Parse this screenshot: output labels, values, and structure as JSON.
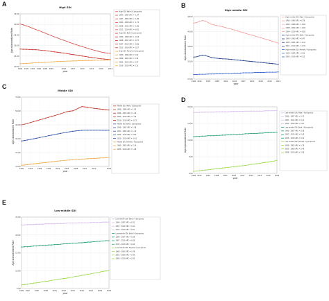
{
  "chart_data": [
    {
      "type": "line",
      "letter": "A",
      "title": "High SDI",
      "xlabel": "year",
      "ylabel": "Age-standardized Rate",
      "x": [
        1990,
        1991,
        1992,
        1993,
        1994,
        1995,
        1996,
        1997,
        1998,
        1999,
        2000,
        2001,
        2002,
        2003,
        2004,
        2005,
        2006,
        2007,
        2008,
        2009,
        2010,
        2011,
        2012,
        2013,
        2014,
        2015,
        2016,
        2017,
        2018,
        2019
      ],
      "xticks": [
        "1990",
        "1992",
        "1994",
        "1996",
        "1998",
        "2000",
        "2004",
        "2007",
        "2010",
        "2013",
        "2016",
        "2019"
      ],
      "xlim": [
        1990,
        2019
      ],
      "ylim": [
        20,
        45
      ],
      "ytick_values": [
        20,
        25,
        30,
        35,
        40,
        45
      ],
      "yticks": [
        "20.00",
        "25.00",
        "30.00",
        "35.00",
        "40.00",
        "45.00"
      ],
      "grid": true,
      "legend_position": "top-right",
      "series": [
        {
          "color": "#d9534f",
          "values": [
            40.2,
            39.8,
            39.3,
            38.8,
            38.2,
            37.6,
            37.1,
            36.5,
            35.9,
            35.3,
            34.7,
            34.1,
            33.6,
            33.0,
            32.5,
            32.0,
            31.4,
            30.9,
            30.4,
            29.9,
            29.4,
            29.0,
            28.5,
            28.1,
            27.7,
            27.3,
            26.9,
            26.6,
            26.4,
            26.3
          ]
        },
        {
          "color": "#c9302c",
          "values": [
            28.3,
            28.2,
            28.2,
            28.1,
            28.0,
            28.0,
            27.9,
            27.7,
            27.6,
            27.4,
            27.2,
            27.0,
            26.8,
            26.6,
            26.4,
            26.2,
            25.9,
            25.7,
            25.5,
            25.2,
            25.0,
            24.8,
            24.5,
            24.3,
            24.1,
            23.9,
            23.7,
            23.6,
            23.4,
            23.3
          ]
        },
        {
          "color": "#f0ad4e",
          "values": [
            21.4,
            21.4,
            21.5,
            21.6,
            21.7,
            21.8,
            21.9,
            21.9,
            22.0,
            22.1,
            22.2,
            22.3,
            22.4,
            22.4,
            22.5,
            22.6,
            22.6,
            22.7,
            22.7,
            22.8,
            22.8,
            22.9,
            22.9,
            22.9,
            23.0,
            23.0,
            23.0,
            23.0,
            23.1,
            23.1
          ]
        }
      ],
      "legend": [
        "High SDI: Male / 6 Joinpoints",
        "1990 - 1997 APC = -1.44",
        "1997 - 2002 APC = -1.89",
        "2002 - 2008 APC = -1.72",
        "2008 - 2012 APC = -1.86",
        "2012 - 2019 APC = -0.81",
        "High SDI: Both / 5 Joinpoints",
        "1990 - 1998 APC = -0.29",
        "1998 - 2007 APC = -0.75",
        "2007 - 2013 APC = -0.86",
        "2013 - 2019 APC = -0.57",
        "High SDI: Female / 6 Joinpoints",
        "1990 - 1996 APC = 0.44",
        "1996 - 2004 APC = 0.39",
        "2004 - 2010 APC = 0.27",
        "2010 - 2019 APC = 0.11"
      ]
    },
    {
      "type": "line",
      "letter": "B",
      "title": "High-middle SDI",
      "xlabel": "year",
      "ylabel": "Age-standardized Rate",
      "x": [
        1990,
        1991,
        1992,
        1993,
        1994,
        1995,
        1996,
        1997,
        1998,
        1999,
        2000,
        2001,
        2002,
        2003,
        2004,
        2005,
        2006,
        2007,
        2008,
        2009,
        2010,
        2011,
        2012,
        2013,
        2014,
        2015,
        2016,
        2017,
        2018,
        2019
      ],
      "xticks": [
        "1990",
        "1992",
        "1995",
        "1998",
        "2001",
        "2004",
        "2007",
        "2010",
        "2013",
        "2016",
        "2019"
      ],
      "xlim": [
        1990,
        2019
      ],
      "ylim": [
        27,
        48
      ],
      "ytick_values": [
        27,
        33,
        38,
        43,
        48
      ],
      "yticks": [
        "27.00",
        "33.00",
        "38.00",
        "43.00",
        "48.00"
      ],
      "grid": true,
      "legend_position": "top-right",
      "series": [
        {
          "color": "#f4a09c",
          "values": [
            45.8,
            46.0,
            46.4,
            46.7,
            46.5,
            46.0,
            45.5,
            45.2,
            45.0,
            44.8,
            44.6,
            44.3,
            44.0,
            43.8,
            43.5,
            43.2,
            42.9,
            42.6,
            42.3,
            42.0,
            41.8,
            41.5,
            41.2,
            40.9,
            40.6,
            40.3,
            40.0,
            39.7,
            39.4,
            39.1
          ]
        },
        {
          "color": "#1f3f8f",
          "values": [
            34.4,
            34.5,
            34.8,
            35.0,
            34.9,
            34.6,
            34.3,
            34.1,
            34.0,
            33.9,
            33.8,
            33.8,
            33.7,
            33.6,
            33.5,
            33.4,
            33.3,
            33.2,
            33.1,
            33.0,
            32.9,
            32.8,
            32.7,
            32.6,
            32.5,
            32.4,
            32.3,
            32.2,
            32.1,
            32.0
          ]
        },
        {
          "color": "#3366cc",
          "values": [
            28.5,
            28.5,
            28.6,
            28.6,
            28.6,
            28.7,
            28.7,
            28.7,
            28.8,
            28.8,
            28.8,
            28.9,
            28.9,
            28.9,
            29.0,
            29.0,
            29.0,
            29.1,
            29.1,
            29.1,
            29.1,
            29.2,
            29.2,
            29.2,
            29.2,
            29.3,
            29.3,
            29.3,
            29.3,
            29.4
          ]
        }
      ],
      "legend": [
        "High-middle SDI: Male / 6 Joinpoints",
        "1990 - 1993 APC = 0.76",
        "1993 - 1998 APC = -0.84",
        "1998 - 2004 APC = -0.66",
        "2004 - 2019 APC = -0.83",
        "High-middle SDI: Both / 5 Joinpoints",
        "1990 - 1993 APC = 0.47",
        "1993 - 2001 APC = -0.41",
        "2001 - 2019 APC = -0.32",
        "High-middle SDI: Female / 4 Joinpoints",
        "1990 - 2005 APC = 0.13",
        "2005 - 2019 APC = 0.12"
      ]
    },
    {
      "type": "line",
      "letter": "C",
      "title": "Middle SDI",
      "xlabel": "year",
      "ylabel": "Age-standardized Rate",
      "x": [
        1990,
        1991,
        1992,
        1993,
        1994,
        1995,
        1996,
        1997,
        1998,
        1999,
        2000,
        2001,
        2002,
        2003,
        2004,
        2005,
        2006,
        2007,
        2008,
        2009,
        2010,
        2011,
        2012,
        2013,
        2014,
        2015,
        2016,
        2017,
        2018,
        2019
      ],
      "xticks": [
        "1990",
        "1993",
        "1996",
        "1999",
        "2002",
        "2005",
        "2008",
        "2011",
        "2014",
        "2019"
      ],
      "xlim": [
        1990,
        2019
      ],
      "ylim": [
        10,
        70
      ],
      "ytick_values": [
        10,
        22,
        34,
        46,
        58,
        70
      ],
      "yticks": [
        "10.00",
        "22.00",
        "34.00",
        "46.00",
        "58.00",
        "70.00"
      ],
      "grid": true,
      "legend_position": "top-right",
      "series": [
        {
          "color": "#c0392b",
          "values": [
            46.0,
            46.5,
            47.2,
            48.0,
            48.8,
            49.5,
            50.3,
            51.0,
            51.8,
            52.5,
            53.3,
            54.0,
            54.8,
            55.6,
            56.5,
            57.3,
            57.8,
            58.1,
            59.2,
            60.6,
            61.8,
            61.5,
            61.1,
            60.7,
            60.3,
            60.0,
            59.7,
            59.4,
            59.1,
            58.8
          ]
        },
        {
          "color": "#3355aa",
          "values": [
            32.0,
            32.4,
            32.9,
            33.4,
            33.9,
            34.4,
            35.0,
            35.5,
            36.0,
            36.6,
            37.1,
            37.6,
            38.1,
            38.6,
            39.1,
            39.6,
            40.0,
            40.4,
            40.7,
            41.0,
            41.3,
            41.4,
            41.4,
            41.4,
            41.4,
            41.4,
            41.4,
            41.3,
            41.3,
            41.3
          ]
        },
        {
          "color": "#f0ad4e",
          "values": [
            11.0,
            11.3,
            11.6,
            11.9,
            12.2,
            12.5,
            12.8,
            13.1,
            13.4,
            13.7,
            14.0,
            14.3,
            14.6,
            14.9,
            15.1,
            15.4,
            15.6,
            15.8,
            16.0,
            16.2,
            16.4,
            16.5,
            16.7,
            16.8,
            17.0,
            17.1,
            17.3,
            17.4,
            17.6,
            17.8
          ]
        }
      ],
      "legend": [
        "Middle SDI: Male / 6 Joinpoints",
        "1990 - 1996 APC = 1.50",
        "1996 - 2003 APC = 1.26",
        "2003 - 2010 APC = 1.50",
        "2010 - 2019 APC = -0.72",
        "Middle SDI: Both / 5 Joinpoints",
        "1990 - 1997 APC = 1.48",
        "1997 - 2005 APC = 1.10",
        "2005 - 2010 APC = 0.82",
        "2010 - 2019 APC = -0.10",
        "Middle SDI: Female / 4 Joinpoints",
        "1990 - 2005 APC = 2.34",
        "2005 - 2019 APC = 1.08"
      ]
    },
    {
      "type": "line",
      "letter": "D",
      "title": "",
      "xlabel": "year",
      "ylabel": "Age-standardized Rate",
      "x": [
        1990,
        1991,
        1992,
        1993,
        1994,
        1995,
        1996,
        1997,
        1998,
        1999,
        2000,
        2001,
        2002,
        2003,
        2004,
        2005,
        2006,
        2007,
        2008,
        2009,
        2010,
        2011,
        2012,
        2013,
        2014,
        2015,
        2016,
        2017,
        2018,
        2019
      ],
      "xticks": [
        "1990",
        "1992",
        "1995",
        "1998",
        "2001",
        "2004",
        "2007",
        "2010",
        "2013",
        "2016",
        "2019"
      ],
      "xlim": [
        1990,
        2019
      ],
      "ylim": [
        0,
        20
      ],
      "ytick_values": [
        0,
        5,
        10,
        15,
        20
      ],
      "yticks": [
        "0.00",
        "5.00",
        "10.00",
        "15.00",
        "20.00"
      ],
      "grid": true,
      "legend_position": "top-right",
      "series": [
        {
          "color": "#d7b8ee",
          "values": [
            18.3,
            18.3,
            18.3,
            18.4,
            18.4,
            18.4,
            18.4,
            18.4,
            18.5,
            18.5,
            18.5,
            18.5,
            18.5,
            18.6,
            18.6,
            18.6,
            18.6,
            18.6,
            18.7,
            18.7,
            18.7,
            18.7,
            18.7,
            18.7,
            18.7,
            18.8,
            18.8,
            18.8,
            18.8,
            18.9
          ]
        },
        {
          "color": "#1a9e6e",
          "values": [
            11.0,
            11.1,
            11.1,
            11.2,
            11.2,
            11.3,
            11.3,
            11.3,
            11.4,
            11.4,
            11.5,
            11.5,
            11.6,
            11.6,
            11.7,
            11.7,
            11.8,
            11.8,
            11.9,
            11.9,
            12.0,
            12.0,
            12.0,
            12.1,
            12.1,
            12.2,
            12.2,
            12.3,
            12.3,
            12.4
          ]
        },
        {
          "color": "#9ad94a",
          "values": [
            0.6,
            0.7,
            0.8,
            0.9,
            1.0,
            1.1,
            1.2,
            1.3,
            1.4,
            1.5,
            1.6,
            1.7,
            1.8,
            1.9,
            2.0,
            2.1,
            2.2,
            2.3,
            2.4,
            2.5,
            2.7,
            2.8,
            2.9,
            3.0,
            3.2,
            3.3,
            3.4,
            3.6,
            3.7,
            3.9
          ]
        }
      ],
      "legend": [
        "Low-middle SDI: Male / 4 Joinpoints",
        "1990 - 2007 APC = 0.11",
        "2007 - 2012 APC = 0.11",
        "2012 - 2019 APC = 0.07",
        "Low-middle SDI: Both / 4 Joinpoints",
        "1990 - 2007 APC = 0.26",
        "2007 - 2015 APC = 0.35",
        "2015 - 2019 APC = 0.41",
        "Low-middle SDI: Female / 5 Joinpoints",
        "1990 - 2002 APC = 3.76",
        "2002 - 2008 APC = 3.45",
        "2008 - 2019 APC = 3.55"
      ]
    },
    {
      "type": "line",
      "letter": "E",
      "title": "Low-middle SDI",
      "xlabel": "year",
      "ylabel": "Age-standardized Rate",
      "x": [
        1990,
        1991,
        1992,
        1993,
        1994,
        1995,
        1996,
        1997,
        1998,
        1999,
        2000,
        2001,
        2002,
        2003,
        2004,
        2005,
        2006,
        2007,
        2008,
        2009,
        2010,
        2011,
        2012,
        2013,
        2014,
        2015,
        2016,
        2017,
        2018,
        2019
      ],
      "xticks": [
        "1990",
        "1992",
        "1995",
        "1998",
        "2001",
        "2004",
        "2007",
        "2010",
        "2013",
        "2016",
        "2019"
      ],
      "xlim": [
        1990,
        2019
      ],
      "ylim": [
        5,
        25
      ],
      "ytick_values": [
        5,
        10,
        15,
        20,
        25
      ],
      "yticks": [
        "5.00",
        "10.00",
        "15.00",
        "20.00",
        "25.00"
      ],
      "grid": true,
      "legend_position": "top-right",
      "series": [
        {
          "color": "#d7b8ee",
          "values": [
            22.8,
            22.8,
            22.9,
            22.9,
            22.9,
            23.0,
            23.0,
            23.0,
            23.1,
            23.1,
            23.1,
            23.1,
            23.2,
            23.2,
            23.2,
            23.3,
            23.3,
            23.3,
            23.3,
            23.4,
            23.4,
            23.4,
            23.4,
            23.5,
            23.5,
            23.5,
            23.5,
            23.6,
            23.6,
            23.6
          ]
        },
        {
          "color": "#1a9e6e",
          "values": [
            16.6,
            16.7,
            16.7,
            16.8,
            16.9,
            16.9,
            17.0,
            17.0,
            17.1,
            17.2,
            17.2,
            17.3,
            17.3,
            17.4,
            17.5,
            17.5,
            17.6,
            17.7,
            17.7,
            17.8,
            17.8,
            17.9,
            18.0,
            18.0,
            18.1,
            18.2,
            18.2,
            18.3,
            18.4,
            18.4
          ]
        },
        {
          "color": "#9ad94a",
          "values": [
            6.0,
            6.1,
            6.2,
            6.4,
            6.5,
            6.6,
            6.7,
            6.9,
            7.0,
            7.1,
            7.3,
            7.4,
            7.5,
            7.7,
            7.8,
            7.9,
            8.1,
            8.2,
            8.4,
            8.5,
            8.7,
            8.8,
            9.0,
            9.1,
            9.3,
            9.4,
            9.6,
            9.8,
            9.9,
            10.0
          ]
        }
      ],
      "legend": [
        "Low-middle SDI: Male / 4 Joinpoints",
        "1990 - 2007 APC = 0.11",
        "2007 - 2012 APC = 0.11",
        "2012 - 2019 APC = 0.07",
        "Low-middle SDI: Both / 4 Joinpoints",
        "1990 - 2007 APC = 0.26",
        "2007 - 2015 APC = 0.35",
        "2015 - 2019 APC = 0.41",
        "Low-middle SDI: Female / 5 Joinpoints",
        "1990 - 2002 APC = 3.76",
        "2002 - 2008 APC = 3.45",
        "2008 - 2019 APC = 3.55"
      ]
    }
  ]
}
